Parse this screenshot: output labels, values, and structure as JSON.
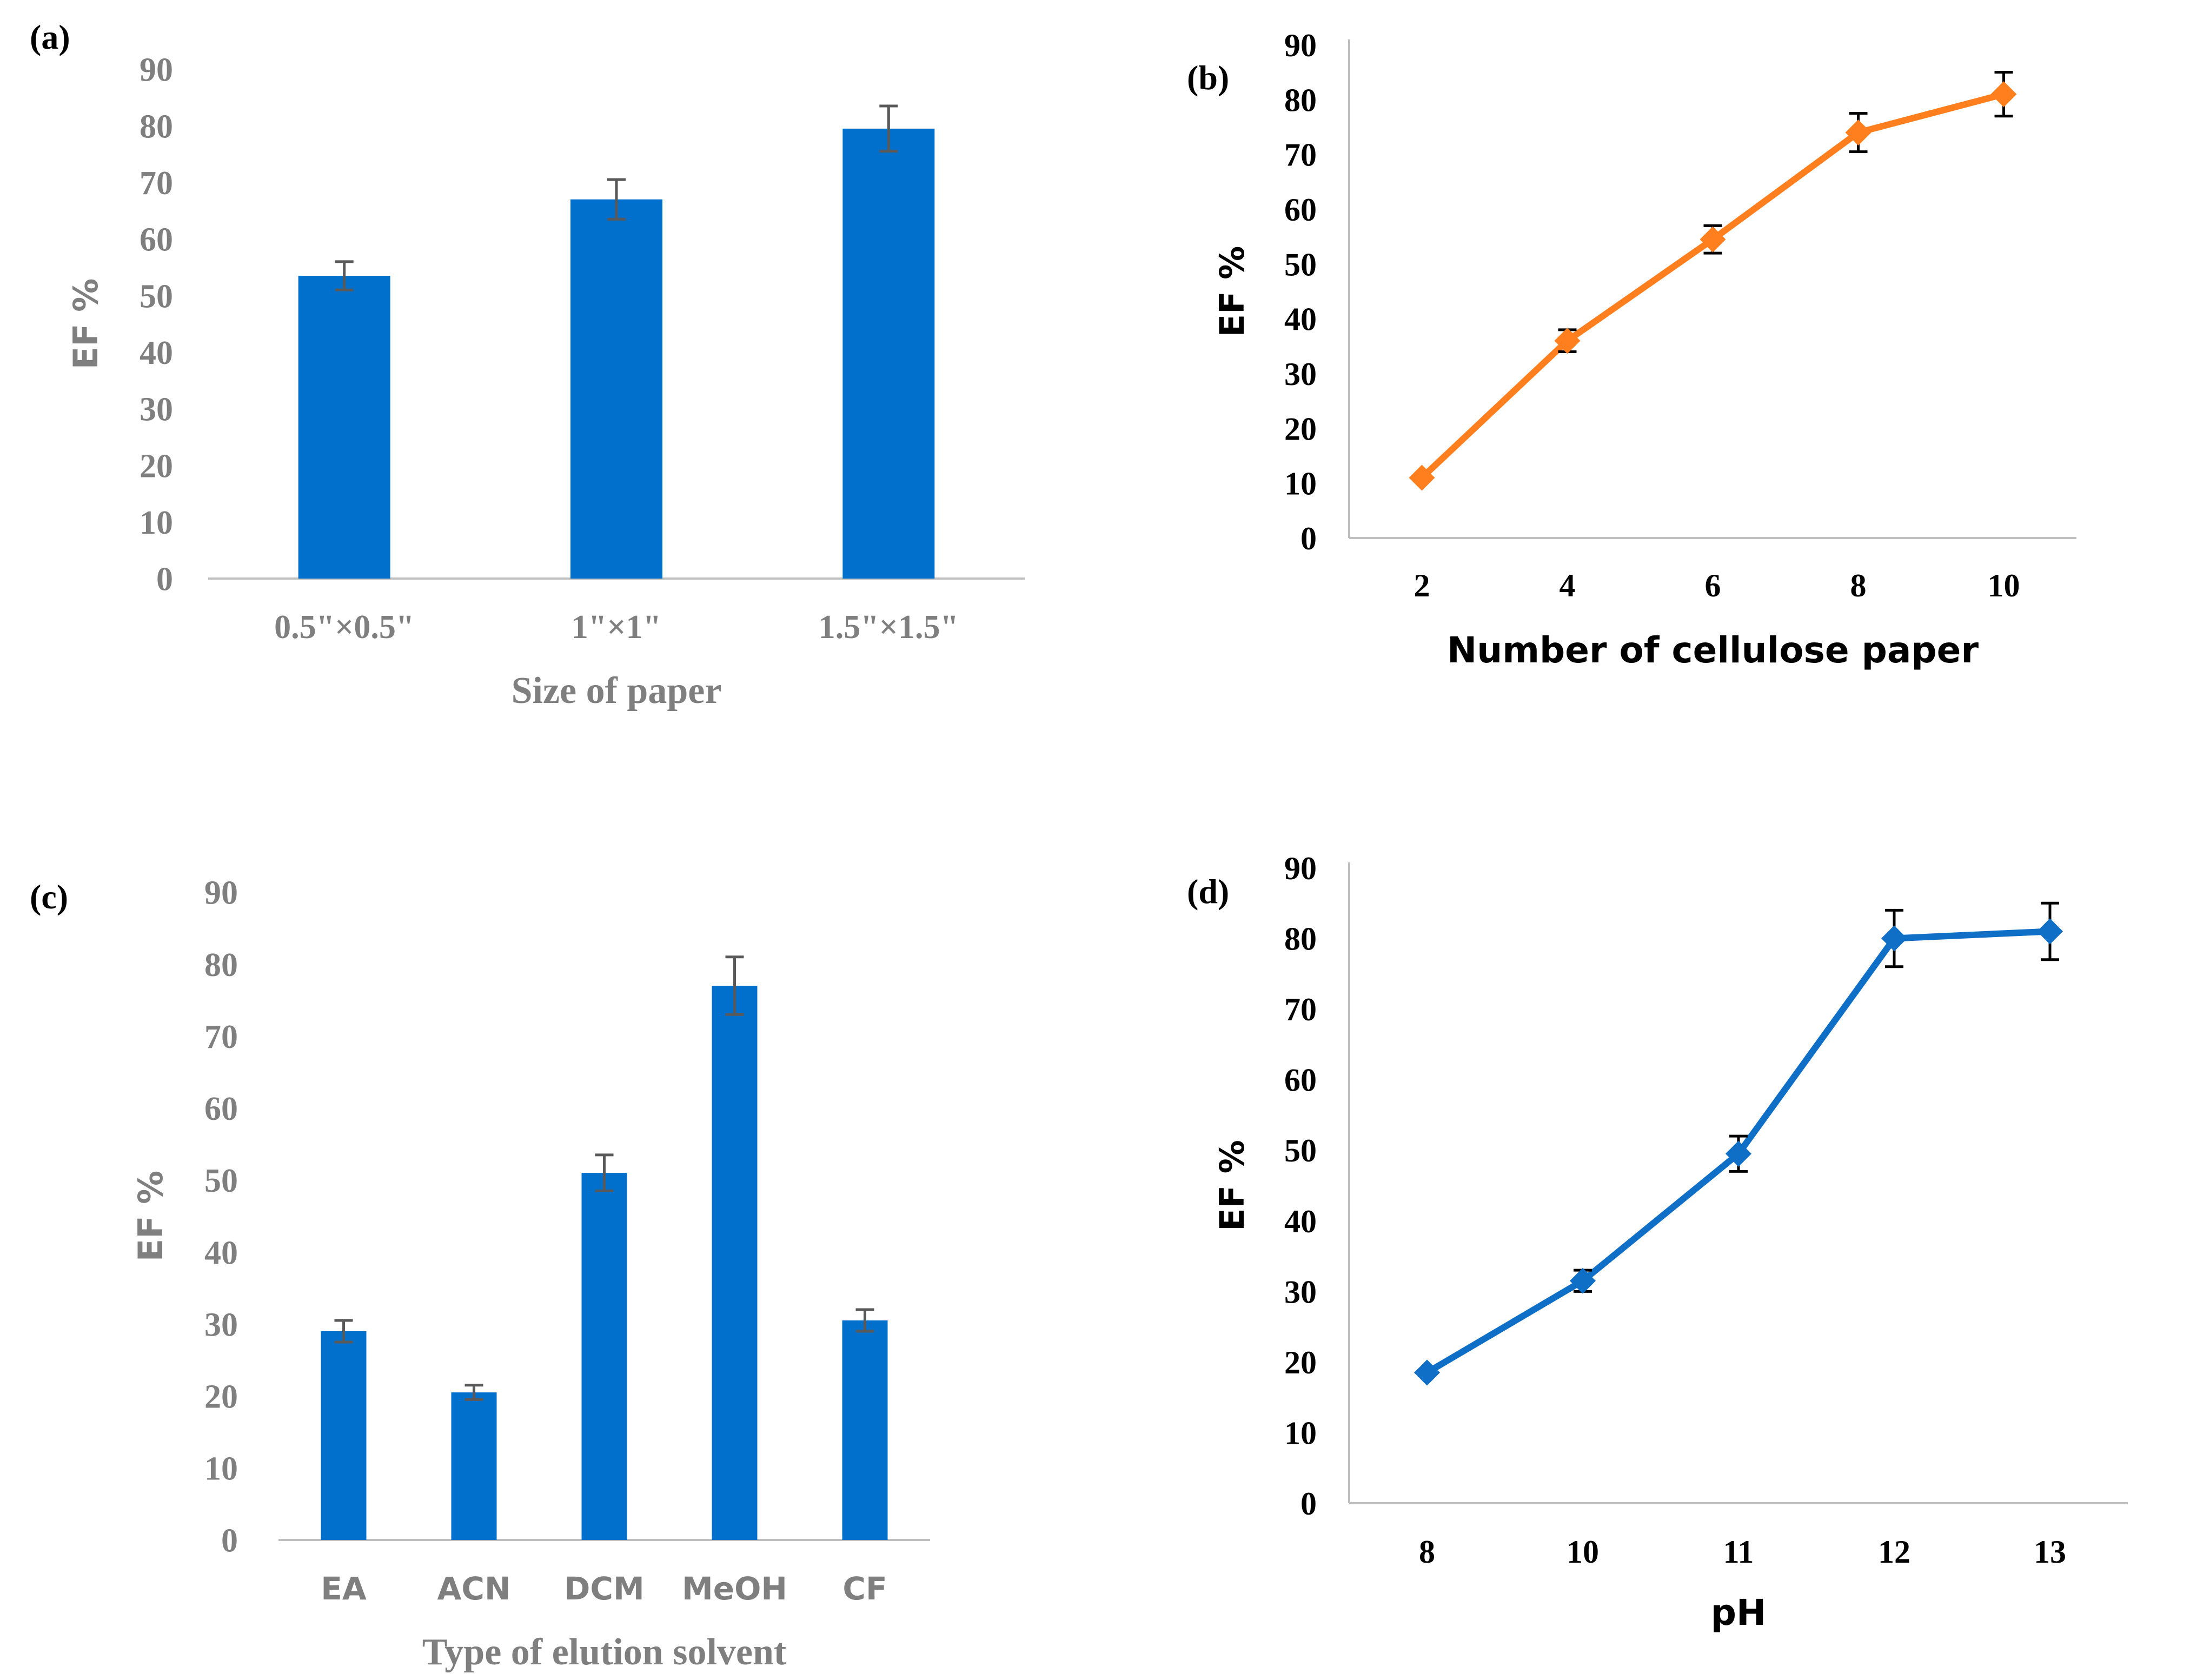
{
  "colors": {
    "bar_blue": "#0070CC",
    "line_orange": "#FF7F1E",
    "line_blue": "#0F6FC6",
    "gray_text": "#7F7F7F",
    "black_text": "#000000",
    "axis_gray": "#BFBFBF",
    "errbar_gray": "#595959"
  },
  "chart_data": [
    {
      "panel": "(a)",
      "type": "bar",
      "title": "",
      "xlabel": "Size of paper",
      "ylabel": "EF %",
      "ylim": [
        0,
        90
      ],
      "yticks": [
        "0",
        "10",
        "20",
        "30",
        "40",
        "50",
        "60",
        "70",
        "80",
        "90"
      ],
      "categories": [
        "0.5\"×0.5\"",
        "1\"×1\"",
        "1.5\"×1.5\""
      ],
      "values": [
        53.5,
        67,
        79.5
      ],
      "errors": [
        2.5,
        3.5,
        4
      ],
      "grid": false
    },
    {
      "panel": "(b)",
      "type": "line",
      "title": "",
      "xlabel": "Number of  cellulose paper",
      "ylabel": "EF %",
      "ylim": [
        0,
        90
      ],
      "yticks": [
        "0",
        "10",
        "20",
        "30",
        "40",
        "50",
        "60",
        "70",
        "80",
        "90"
      ],
      "categories": [
        "2",
        "4",
        "6",
        "8",
        "10"
      ],
      "values": [
        11,
        36,
        54.5,
        74,
        81
      ],
      "errors": [
        0,
        2,
        2.5,
        3.5,
        4
      ],
      "marker": "diamond",
      "grid": false
    },
    {
      "panel": "(c)",
      "type": "bar",
      "title": "",
      "xlabel": "Type of elution solvent",
      "ylabel": "EF %",
      "ylim": [
        0,
        90
      ],
      "yticks": [
        "0",
        "10",
        "20",
        "30",
        "40",
        "50",
        "60",
        "70",
        "80",
        "90"
      ],
      "categories": [
        "EA",
        "ACN",
        "DCM",
        "MeOH",
        "CF"
      ],
      "values": [
        29,
        20.5,
        51,
        77,
        30.5
      ],
      "errors": [
        1.5,
        1,
        2.5,
        4,
        1.5
      ],
      "grid": false
    },
    {
      "panel": "(d)",
      "type": "line",
      "title": "",
      "xlabel": "pH",
      "ylabel": "EF %",
      "ylim": [
        0,
        90
      ],
      "yticks": [
        "0",
        "10",
        "20",
        "30",
        "40",
        "50",
        "60",
        "70",
        "80",
        "90"
      ],
      "categories": [
        "8",
        "10",
        "11",
        "12",
        "13"
      ],
      "values": [
        18.5,
        31.5,
        49.5,
        80,
        81
      ],
      "errors": [
        0,
        1.5,
        2.5,
        4,
        4
      ],
      "marker": "diamond",
      "grid": false
    }
  ]
}
